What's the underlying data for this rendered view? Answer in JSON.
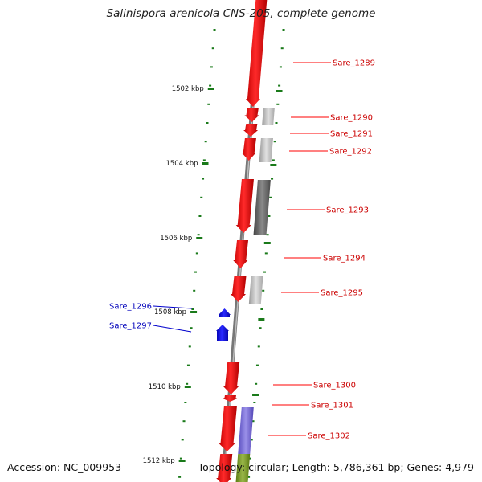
{
  "title": "Salinispora arenicola CNS-205, complete genome",
  "footer": {
    "accession": "Accession: NC_009953",
    "summary": "Topology: circular; Length: 5,786,361 bp; Genes: 4,979"
  },
  "colors": {
    "forward_gene": "#ff0000",
    "reverse_gene": "#0000ff",
    "backbone": "#808080",
    "tick": "#1a7a1a",
    "feature_gray": "#bbbbbb",
    "feature_dark": "#666666",
    "feature_purple": "#7a6fd0",
    "feature_olive": "#7a9a2a"
  },
  "ticks": [
    "1502 kbp",
    "1504 kbp",
    "1506 kbp",
    "1508 kbp",
    "1510 kbp",
    "1512 kbp"
  ],
  "genes": [
    {
      "label": "Sare_1289",
      "strand": "+"
    },
    {
      "label": "Sare_1290",
      "strand": "+"
    },
    {
      "label": "Sare_1291",
      "strand": "+"
    },
    {
      "label": "Sare_1292",
      "strand": "+"
    },
    {
      "label": "Sare_1293",
      "strand": "+"
    },
    {
      "label": "Sare_1294",
      "strand": "+"
    },
    {
      "label": "Sare_1295",
      "strand": "+"
    },
    {
      "label": "Sare_1296",
      "strand": "-"
    },
    {
      "label": "Sare_1297",
      "strand": "-"
    },
    {
      "label": "Sare_1300",
      "strand": "+"
    },
    {
      "label": "Sare_1301",
      "strand": "+"
    },
    {
      "label": "Sare_1302",
      "strand": "+"
    }
  ]
}
